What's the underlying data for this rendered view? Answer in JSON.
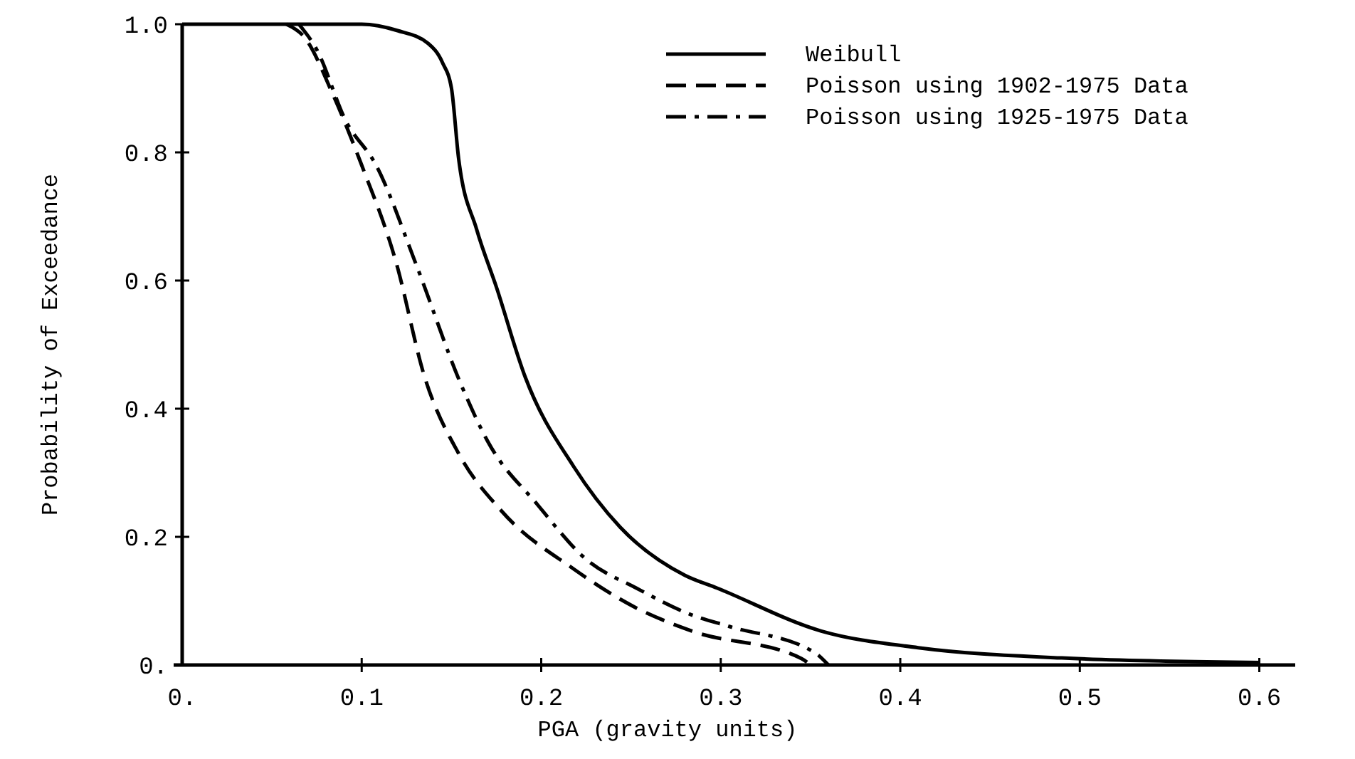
{
  "chart_data": {
    "type": "line",
    "xlabel": "PGA (gravity units)",
    "ylabel": "Probability of Exceedance",
    "xlim": [
      0,
      0.62
    ],
    "ylim": [
      0,
      1
    ],
    "xticks": [
      {
        "value": 0,
        "label": "0."
      },
      0.1,
      0.2,
      0.3,
      0.4,
      0.5,
      0.6
    ],
    "yticks": [
      {
        "value": 0,
        "label": "0."
      },
      0.2,
      0.4,
      0.6,
      0.8,
      {
        "value": 1,
        "label": "1.0"
      }
    ],
    "grid": false,
    "legend": "top right",
    "marker": "none",
    "series": [
      {
        "name": "Weibull",
        "color": "#000000",
        "line_style": "solid",
        "x": [
          0,
          0.1,
          0.12,
          0.137,
          0.145,
          0.15,
          0.154,
          0.164,
          0.175,
          0.191,
          0.218,
          0.244,
          0.28,
          0.298,
          0.356,
          0.41,
          0.49,
          0.6
        ],
        "values": [
          1,
          1,
          0.99,
          0.97,
          0.94,
          0.9,
          0.79,
          0.68,
          0.59,
          0.45,
          0.31,
          0.215,
          0.14,
          0.12,
          0.053,
          0.027,
          0.011,
          0.004
        ]
      },
      {
        "name": "Poisson using 1902-1975 Data",
        "color": "#000000",
        "line_style": "dashed",
        "x": [
          0.058,
          0.068,
          0.084,
          0.1,
          0.119,
          0.135,
          0.154,
          0.178,
          0.218,
          0.253,
          0.284,
          0.345,
          0.35
        ],
        "values": [
          1,
          0.98,
          0.89,
          0.78,
          0.63,
          0.45,
          0.33,
          0.24,
          0.15,
          0.089,
          0.053,
          0.01,
          0
        ]
      },
      {
        "name": "Poisson using 1925-1975 Data",
        "color": "#000000",
        "line_style": "dashdot",
        "x": [
          0.065,
          0.075,
          0.091,
          0.108,
          0.131,
          0.155,
          0.17,
          0.198,
          0.225,
          0.253,
          0.284,
          0.305,
          0.352,
          0.36
        ],
        "values": [
          1,
          0.96,
          0.85,
          0.78,
          0.62,
          0.44,
          0.35,
          0.25,
          0.165,
          0.12,
          0.078,
          0.06,
          0.02,
          0
        ]
      }
    ]
  }
}
